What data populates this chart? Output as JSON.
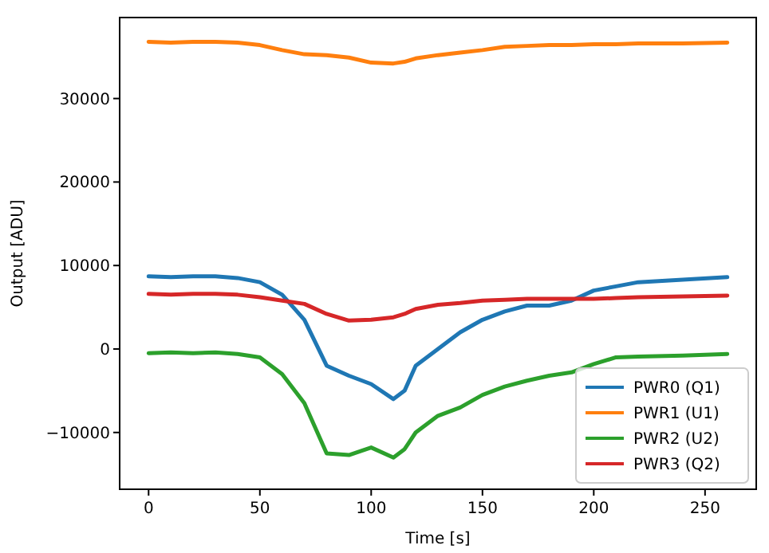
{
  "chart_data": {
    "type": "line",
    "xlabel": "Time [s]",
    "ylabel": "Output [ADU]",
    "xlim": [
      -13,
      273
    ],
    "ylim": [
      -16800,
      39700
    ],
    "xticks": [
      0,
      50,
      100,
      150,
      200,
      250
    ],
    "yticks": [
      -10000,
      0,
      10000,
      20000,
      30000
    ],
    "legend": "bottom right",
    "grid": false,
    "x": [
      0,
      10,
      20,
      30,
      40,
      50,
      60,
      70,
      80,
      90,
      100,
      110,
      115,
      120,
      130,
      140,
      150,
      160,
      170,
      180,
      190,
      200,
      210,
      220,
      240,
      260
    ],
    "series": [
      {
        "name": "PWR0 (Q1)",
        "color": "#1f77b4",
        "values": [
          8700,
          8600,
          8700,
          8700,
          8500,
          8000,
          6500,
          3500,
          -2000,
          -3200,
          -4200,
          -6000,
          -5000,
          -2000,
          0,
          2000,
          3500,
          4500,
          5200,
          5200,
          5800,
          7000,
          7500,
          8000,
          8300,
          8600
        ]
      },
      {
        "name": "PWR1 (U1)",
        "color": "#ff7f0e",
        "values": [
          36800,
          36700,
          36800,
          36800,
          36700,
          36400,
          35800,
          35300,
          35200,
          34900,
          34300,
          34200,
          34400,
          34800,
          35200,
          35500,
          35800,
          36200,
          36300,
          36400,
          36400,
          36500,
          36500,
          36600,
          36600,
          36700
        ]
      },
      {
        "name": "PWR2 (U2)",
        "color": "#2ca02c",
        "values": [
          -500,
          -400,
          -500,
          -400,
          -600,
          -1000,
          -3000,
          -6500,
          -12500,
          -12700,
          -11800,
          -13000,
          -12000,
          -10000,
          -8000,
          -7000,
          -5500,
          -4500,
          -3800,
          -3200,
          -2800,
          -1800,
          -1000,
          -900,
          -800,
          -600
        ]
      },
      {
        "name": "PWR3 (Q2)",
        "color": "#d62728",
        "values": [
          6600,
          6500,
          6600,
          6600,
          6500,
          6200,
          5800,
          5400,
          4200,
          3400,
          3500,
          3800,
          4200,
          4800,
          5300,
          5500,
          5800,
          5900,
          6000,
          6000,
          6000,
          6000,
          6100,
          6200,
          6300,
          6400
        ]
      }
    ]
  }
}
